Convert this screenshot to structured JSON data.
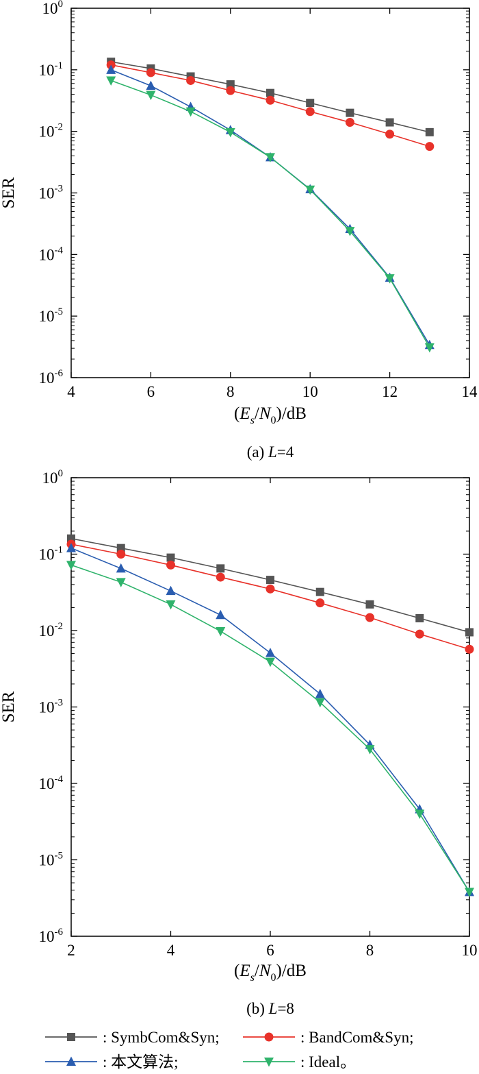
{
  "chart_data": [
    {
      "type": "line",
      "caption_prefix": "(a) ",
      "caption_var": "L",
      "caption_suffix": "=4",
      "xlabel_parts": [
        "(",
        "E",
        "s",
        "/",
        "N",
        "0",
        ")",
        "/dB"
      ],
      "ylabel": "SER",
      "xlim": [
        4,
        14
      ],
      "ylim": [
        1e-06,
        1
      ],
      "yscale": "log",
      "xticks": [
        4,
        6,
        8,
        10,
        12,
        14
      ],
      "yticks": [
        1e-06,
        1e-05,
        0.0001,
        0.001,
        0.01,
        0.1,
        1
      ],
      "ytick_base": "10",
      "ytick_exponents": [
        "-6",
        "-5",
        "-4",
        "-3",
        "-2",
        "-1",
        "0"
      ],
      "grid": false,
      "x": [
        5,
        6,
        7,
        8,
        9,
        10,
        11,
        12,
        13
      ],
      "series": [
        {
          "key": "symb",
          "values": [
            0.135,
            0.105,
            0.078,
            0.058,
            0.042,
            0.029,
            0.02,
            0.014,
            0.0097
          ]
        },
        {
          "key": "band",
          "values": [
            0.12,
            0.09,
            0.067,
            0.046,
            0.032,
            0.021,
            0.014,
            0.009,
            0.0057
          ]
        },
        {
          "key": "prop",
          "values": [
            0.1,
            0.055,
            0.025,
            0.0105,
            0.0038,
            0.00115,
            0.00026,
            4.2e-05,
            3.4e-06
          ]
        },
        {
          "key": "ideal",
          "values": [
            0.067,
            0.039,
            0.021,
            0.0097,
            0.0038,
            0.00113,
            0.00024,
            4.1e-05,
            3.1e-06
          ]
        }
      ]
    },
    {
      "type": "line",
      "caption_prefix": "(b) ",
      "caption_var": "L",
      "caption_suffix": "=8",
      "xlabel_parts": [
        "(",
        "E",
        "s",
        "/",
        "N",
        "0",
        ")",
        "/dB"
      ],
      "ylabel": "SER",
      "xlim": [
        2,
        10
      ],
      "ylim": [
        1e-06,
        1
      ],
      "yscale": "log",
      "xticks": [
        2,
        4,
        6,
        8,
        10
      ],
      "yticks": [
        1e-06,
        1e-05,
        0.0001,
        0.001,
        0.01,
        0.1,
        1
      ],
      "ytick_base": "10",
      "ytick_exponents": [
        "-6",
        "-5",
        "-4",
        "-3",
        "-2",
        "-1",
        "0"
      ],
      "grid": false,
      "x": [
        2,
        3,
        4,
        5,
        6,
        7,
        8,
        9,
        10
      ],
      "series": [
        {
          "key": "symb",
          "values": [
            0.16,
            0.12,
            0.09,
            0.065,
            0.046,
            0.032,
            0.022,
            0.0145,
            0.0095
          ]
        },
        {
          "key": "band",
          "values": [
            0.135,
            0.1,
            0.072,
            0.05,
            0.035,
            0.023,
            0.0148,
            0.009,
            0.0057
          ]
        },
        {
          "key": "prop",
          "values": [
            0.12,
            0.065,
            0.033,
            0.016,
            0.0051,
            0.00148,
            0.00032,
            4.6e-05,
            3.8e-06
          ]
        },
        {
          "key": "ideal",
          "values": [
            0.072,
            0.043,
            0.022,
            0.0098,
            0.0039,
            0.00115,
            0.00028,
            4e-05,
            3.8e-06
          ]
        }
      ]
    }
  ],
  "legend": {
    "placement": "bottom",
    "entries": [
      {
        "key": "symb",
        "text": ": SymbCom&Syn;",
        "color": "#555555",
        "marker": "square"
      },
      {
        "key": "band",
        "text": ": BandCom&Syn;",
        "color": "#e8322a",
        "marker": "circle"
      },
      {
        "key": "prop",
        "text": ": 本文算法;",
        "color": "#2a5db0",
        "marker": "triangle-up"
      },
      {
        "key": "ideal",
        "text": ": Ideal。",
        "color": "#2fb36b",
        "marker": "triangle-down"
      }
    ]
  }
}
